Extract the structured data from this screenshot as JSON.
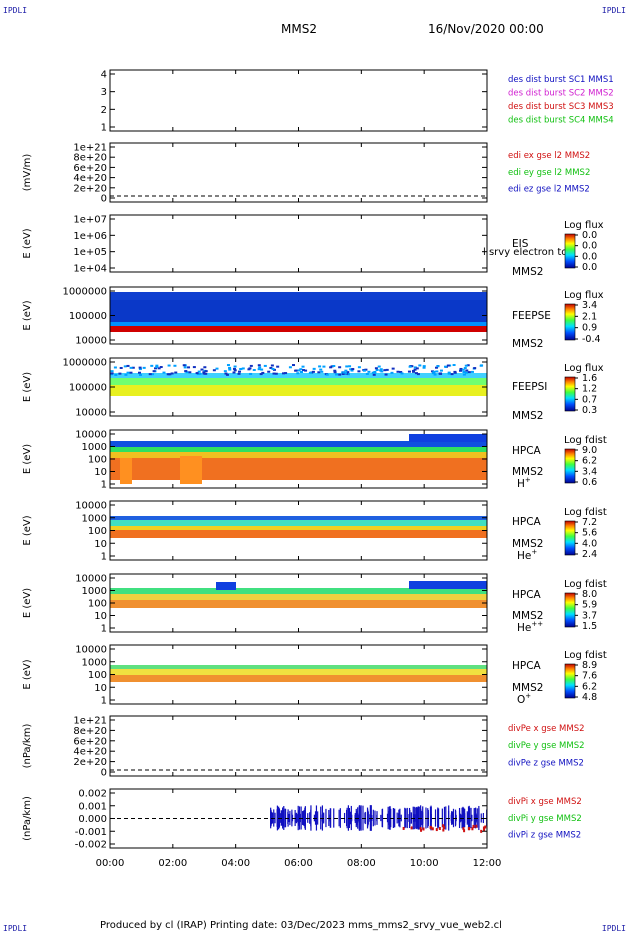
{
  "header": {
    "corner_tl": "IPDLI",
    "corner_tr": "IPDLI",
    "corner_bl": "IPDLI",
    "corner_br": "IPDLI",
    "spacecraft": "MMS2",
    "date": "16/Nov/2020 00:00"
  },
  "footer": {
    "text": "Produced by cl (IRAP)   Printing date: 03/Dec/2023   mms_mms2_srvy_vue_web2.cl"
  },
  "colors": {
    "red": "#d01010",
    "magenta": "#d020d0",
    "green": "#10c010",
    "blue": "#1010c0"
  },
  "chart_data": {
    "type": "heatmap",
    "x_ticks": [
      "00:00",
      "02:00",
      "04:00",
      "06:00",
      "08:00",
      "10:00",
      "12:00"
    ],
    "panels": [
      {
        "id": "burst",
        "ylabel": "",
        "y_ticks": [
          "1",
          "2",
          "3",
          "4"
        ],
        "legend": [
          {
            "text": "des dist burst SC1 MMS1",
            "color": "blue"
          },
          {
            "text": "des dist burst SC2 MMS2",
            "color": "magenta"
          },
          {
            "text": "des dist burst SC3 MMS3",
            "color": "red"
          },
          {
            "text": "des dist burst SC4 MMS4",
            "color": "green"
          }
        ]
      },
      {
        "id": "edi",
        "ylabel": "(mV/m)",
        "y_ticks": [
          "0",
          "2e+20",
          "4e+20",
          "6e+20",
          "8e+20",
          "1e+21"
        ],
        "dashed_zero": true,
        "legend": [
          {
            "text": "edi ex gse l2 MMS2",
            "color": "red"
          },
          {
            "text": "edi ey gse l2 MMS2",
            "color": "green"
          },
          {
            "text": "edi ez gse l2 MMS2",
            "color": "blue"
          }
        ]
      },
      {
        "id": "eis",
        "ylabel": "E (eV)",
        "y_ticks": [
          "1e+04",
          "1e+05",
          "1e+06",
          "1e+07"
        ],
        "labels": [
          "EIS",
          "MMS2"
        ],
        "overlay": "l srvy electron to",
        "colorbar": {
          "title": "Log flux",
          "ticks": [
            "0.0",
            "0.0",
            "0.0",
            "0.0"
          ]
        }
      },
      {
        "id": "feepse",
        "ylabel": "E (eV)",
        "y_ticks": [
          "10000",
          "100000",
          "1000000"
        ],
        "labels": [
          "FEEPSE",
          "MMS2"
        ],
        "colorbar": {
          "title": "Log flux",
          "ticks": [
            "3.4",
            "2.1",
            "0.9",
            "-0.4"
          ]
        }
      },
      {
        "id": "feepsi",
        "ylabel": "E (eV)",
        "y_ticks": [
          "10000",
          "100000",
          "1000000"
        ],
        "labels": [
          "FEEPSI",
          "MMS2"
        ],
        "colorbar": {
          "title": "Log flux",
          "ticks": [
            "1.6",
            "1.2",
            "0.7",
            "0.3"
          ]
        }
      },
      {
        "id": "hpca_h",
        "ylabel": "E (eV)",
        "y_ticks": [
          "1",
          "10",
          "100",
          "1000",
          "10000"
        ],
        "labels": [
          "HPCA",
          "MMS2"
        ],
        "species": "H",
        "species_sup": "+",
        "colorbar": {
          "title": "Log fdist",
          "ticks": [
            "9.0",
            "6.2",
            "3.4",
            "0.6"
          ]
        }
      },
      {
        "id": "hpca_he",
        "ylabel": "E (eV)",
        "y_ticks": [
          "1",
          "10",
          "100",
          "1000",
          "10000"
        ],
        "labels": [
          "HPCA",
          "MMS2"
        ],
        "species": "He",
        "species_sup": "+",
        "colorbar": {
          "title": "Log fdist",
          "ticks": [
            "7.2",
            "5.6",
            "4.0",
            "2.4"
          ]
        }
      },
      {
        "id": "hpca_hepp",
        "ylabel": "E (eV)",
        "y_ticks": [
          "1",
          "10",
          "100",
          "1000",
          "10000"
        ],
        "labels": [
          "HPCA",
          "MMS2"
        ],
        "species": "He",
        "species_sup": "++",
        "colorbar": {
          "title": "Log fdist",
          "ticks": [
            "8.0",
            "5.9",
            "3.7",
            "1.5"
          ]
        }
      },
      {
        "id": "hpca_o",
        "ylabel": "E (eV)",
        "y_ticks": [
          "1",
          "10",
          "100",
          "1000",
          "10000"
        ],
        "labels": [
          "HPCA",
          "MMS2"
        ],
        "species": "O",
        "species_sup": "+",
        "colorbar": {
          "title": "Log fdist",
          "ticks": [
            "8.9",
            "7.6",
            "6.2",
            "4.8"
          ]
        }
      },
      {
        "id": "divpe",
        "ylabel": "(nPa/km)",
        "y_ticks": [
          "0",
          "2e+20",
          "4e+20",
          "6e+20",
          "8e+20",
          "1e+21"
        ],
        "dashed_zero": true,
        "legend": [
          {
            "text": "divPe x gse MMS2",
            "color": "red"
          },
          {
            "text": "divPe y gse MMS2",
            "color": "green"
          },
          {
            "text": "divPe z gse MMS2",
            "color": "blue"
          }
        ]
      },
      {
        "id": "divpi",
        "ylabel": "(nPa/km)",
        "y_ticks": [
          "-0.002",
          "-0.001",
          "0.000",
          "0.001",
          "0.002"
        ],
        "dashed_zero": true,
        "legend": [
          {
            "text": "divPi x gse MMS2",
            "color": "red"
          },
          {
            "text": "divPi y gse MMS2",
            "color": "green"
          },
          {
            "text": "divPi z gse MMS2",
            "color": "blue"
          }
        ]
      }
    ]
  }
}
